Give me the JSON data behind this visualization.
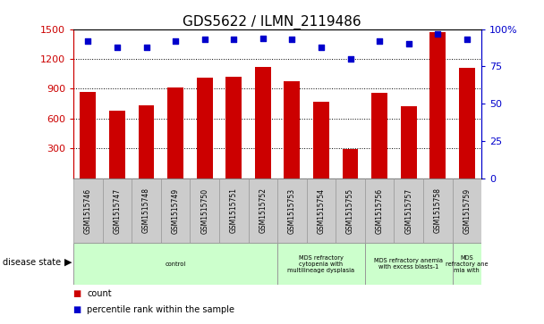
{
  "title": "GDS5622 / ILMN_2119486",
  "samples": [
    "GSM1515746",
    "GSM1515747",
    "GSM1515748",
    "GSM1515749",
    "GSM1515750",
    "GSM1515751",
    "GSM1515752",
    "GSM1515753",
    "GSM1515754",
    "GSM1515755",
    "GSM1515756",
    "GSM1515757",
    "GSM1515758",
    "GSM1515759"
  ],
  "counts": [
    870,
    680,
    730,
    910,
    1010,
    1020,
    1120,
    980,
    770,
    290,
    860,
    720,
    1470,
    1110
  ],
  "percentile_ranks": [
    92,
    88,
    88,
    92,
    93,
    93,
    94,
    93,
    88,
    80,
    92,
    90,
    97,
    93
  ],
  "bar_color": "#cc0000",
  "dot_color": "#0000cc",
  "ylim_left": [
    0,
    1500
  ],
  "ylim_right": [
    0,
    100
  ],
  "yticks_left": [
    300,
    600,
    900,
    1200,
    1500
  ],
  "yticks_right": [
    0,
    25,
    50,
    75,
    100
  ],
  "group_data": [
    {
      "start": 0,
      "end": 7,
      "label": "control"
    },
    {
      "start": 7,
      "end": 10,
      "label": "MDS refractory\ncytopenia with\nmultilineage dysplasia"
    },
    {
      "start": 10,
      "end": 13,
      "label": "MDS refractory anemia\nwith excess blasts-1"
    },
    {
      "start": 13,
      "end": 14,
      "label": "MDS\nrefractory ane\nmia with"
    }
  ],
  "disease_state_label": "disease state",
  "legend_count_label": "count",
  "legend_pct_label": "percentile rank within the sample",
  "bar_width": 0.55,
  "grid_color": "#888888",
  "background_color": "#ffffff",
  "axis_left_color": "#cc0000",
  "axis_right_color": "#0000cc",
  "sample_box_color": "#cccccc",
  "group_box_color": "#ccffcc",
  "title_fontsize": 11
}
